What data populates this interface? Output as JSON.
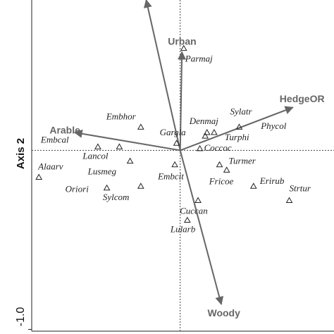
{
  "chart_data": {
    "type": "scatter",
    "y_label": "Axis 2",
    "xlim": [
      -0.83,
      0.86
    ],
    "ylim": [
      -1.01,
      0.84
    ],
    "yticks": [
      {
        "value": -1.0,
        "label": "-1.0"
      }
    ],
    "points": {
      "labels": [
        "Parmaj",
        "Embhor",
        "Embcal",
        "Lancol",
        "Lusmeg",
        "Alaarv",
        "Oriori",
        "Sylcom",
        "Gargla",
        "Embcit",
        "Denmaj",
        "Turphi",
        "Phycol",
        "Sylatr",
        "Coccoc",
        "Turmer",
        "Fricoe",
        "Erirub",
        "Strtur",
        "Cuccan",
        "Lularb"
      ],
      "x": [
        0.02,
        -0.22,
        -0.46,
        -0.34,
        -0.28,
        -0.79,
        -0.41,
        -0.22,
        -0.02,
        -0.03,
        0.15,
        0.19,
        0.14,
        0.33,
        0.11,
        0.22,
        0.26,
        0.41,
        0.61,
        0.1,
        0.04
      ],
      "y": [
        0.57,
        0.13,
        0.02,
        0.02,
        -0.06,
        -0.15,
        -0.21,
        -0.2,
        0.04,
        -0.08,
        0.1,
        0.1,
        0.08,
        0.13,
        0.01,
        -0.08,
        -0.11,
        -0.2,
        -0.28,
        -0.28,
        -0.39
      ]
    },
    "arrows": {
      "names": [
        "Urban",
        "HedgeOR",
        "Arable",
        "Woody",
        null
      ],
      "x": [
        0.01,
        0.63,
        -0.59,
        0.23,
        -0.19
      ],
      "y": [
        0.55,
        0.24,
        0.1,
        -0.86,
        0.84
      ]
    }
  }
}
